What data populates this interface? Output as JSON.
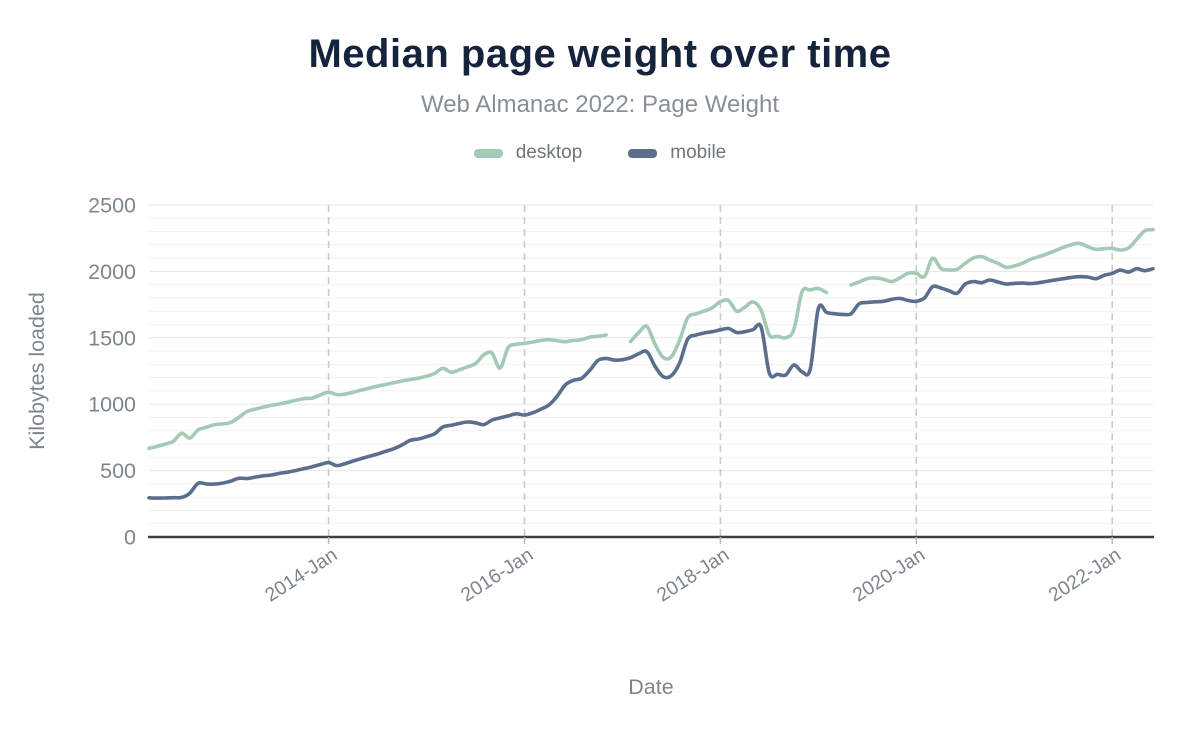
{
  "chart_data": {
    "type": "line",
    "title": "Median page weight over time",
    "subtitle": "Web Almanac 2022: Page Weight",
    "xlabel": "Date",
    "ylabel": "Kilobytes loaded",
    "unit": "KB",
    "ylim": [
      0,
      2500
    ],
    "y_major_ticks": [
      0,
      500,
      1000,
      1500,
      2000,
      2500
    ],
    "y_minor_step": 100,
    "grid": {
      "horizontal": "minor every 100, major every 500",
      "vertical": "dashed at x ticks"
    },
    "legend_position": "top",
    "x_ticks": [
      {
        "label": "2014-Jan",
        "month": "2014-01"
      },
      {
        "label": "2016-Jan",
        "month": "2016-01"
      },
      {
        "label": "2018-Jan",
        "month": "2018-01"
      },
      {
        "label": "2020-Jan",
        "month": "2020-01"
      },
      {
        "label": "2022-Jan",
        "month": "2022-01"
      }
    ],
    "x": [
      "2012-03",
      "2012-04",
      "2012-05",
      "2012-06",
      "2012-07",
      "2012-08",
      "2012-09",
      "2012-10",
      "2012-11",
      "2012-12",
      "2013-01",
      "2013-02",
      "2013-03",
      "2013-04",
      "2013-05",
      "2013-06",
      "2013-07",
      "2013-08",
      "2013-09",
      "2013-10",
      "2013-11",
      "2013-12",
      "2014-01",
      "2014-02",
      "2014-03",
      "2014-04",
      "2014-05",
      "2014-06",
      "2014-07",
      "2014-08",
      "2014-09",
      "2014-10",
      "2014-11",
      "2014-12",
      "2015-01",
      "2015-02",
      "2015-03",
      "2015-04",
      "2015-05",
      "2015-06",
      "2015-07",
      "2015-08",
      "2015-09",
      "2015-10",
      "2015-11",
      "2015-12",
      "2016-01",
      "2016-02",
      "2016-03",
      "2016-04",
      "2016-05",
      "2016-06",
      "2016-07",
      "2016-08",
      "2016-09",
      "2016-10",
      "2016-11",
      "2016-12",
      "2017-01",
      "2017-02",
      "2017-03",
      "2017-04",
      "2017-05",
      "2017-06",
      "2017-07",
      "2017-08",
      "2017-09",
      "2017-10",
      "2017-11",
      "2017-12",
      "2018-01",
      "2018-02",
      "2018-03",
      "2018-04",
      "2018-05",
      "2018-06",
      "2018-07",
      "2018-08",
      "2018-09",
      "2018-10",
      "2018-11",
      "2018-12",
      "2019-01",
      "2019-02",
      "2019-03",
      "2019-04",
      "2019-05",
      "2019-06",
      "2019-07",
      "2019-08",
      "2019-09",
      "2019-10",
      "2019-11",
      "2019-12",
      "2020-01",
      "2020-02",
      "2020-03",
      "2020-04",
      "2020-05",
      "2020-06",
      "2020-07",
      "2020-08",
      "2020-09",
      "2020-10",
      "2020-11",
      "2020-12",
      "2021-01",
      "2021-02",
      "2021-03",
      "2021-04",
      "2021-05",
      "2021-06",
      "2021-07",
      "2021-08",
      "2021-09",
      "2021-10",
      "2021-11",
      "2021-12",
      "2022-01",
      "2022-02",
      "2022-03",
      "2022-04",
      "2022-05",
      "2022-06"
    ],
    "series": [
      {
        "name": "desktop",
        "color": "#a4c9b4",
        "values": [
          668,
          682,
          700,
          722,
          781,
          745,
          806,
          826,
          845,
          852,
          862,
          900,
          945,
          962,
          978,
          992,
          1002,
          1016,
          1030,
          1042,
          1046,
          1070,
          1090,
          1072,
          1076,
          1090,
          1106,
          1121,
          1136,
          1148,
          1161,
          1175,
          1186,
          1196,
          1211,
          1232,
          1270,
          1241,
          1258,
          1281,
          1306,
          1371,
          1386,
          1272,
          1426,
          1450,
          1458,
          1468,
          1480,
          1486,
          1478,
          1471,
          1480,
          1486,
          1505,
          1512,
          1521,
          null,
          null,
          1472,
          1540,
          1585,
          1450,
          1352,
          1357,
          1481,
          1651,
          1680,
          1701,
          1726,
          1772,
          1780,
          1700,
          1731,
          1770,
          1706,
          1521,
          1511,
          1501,
          1561,
          1846,
          1861,
          1871,
          1841,
          null,
          null,
          1898,
          1921,
          1946,
          1951,
          1941,
          1923,
          1951,
          1986,
          1985,
          1961,
          2099,
          2023,
          2011,
          2016,
          2061,
          2101,
          2111,
          2086,
          2061,
          2031,
          2041,
          2061,
          2091,
          2111,
          2131,
          2156,
          2181,
          2201,
          2211,
          2186,
          2166,
          2171,
          2174,
          2161,
          2176,
          2241,
          2306,
          2315
        ]
      },
      {
        "name": "mobile",
        "color": "#5b6e8e",
        "values": [
          295,
          293,
          294,
          296,
          298,
          330,
          404,
          400,
          398,
          406,
          420,
          442,
          440,
          450,
          461,
          467,
          480,
          488,
          501,
          515,
          529,
          546,
          560,
          538,
          552,
          572,
          590,
          608,
          625,
          645,
          665,
          693,
          728,
          738,
          755,
          778,
          828,
          841,
          855,
          866,
          860,
          846,
          880,
          897,
          912,
          928,
          918,
          935,
          962,
          995,
          1060,
          1145,
          1180,
          1195,
          1255,
          1330,
          1345,
          1332,
          1335,
          1350,
          1380,
          1395,
          1285,
          1207,
          1215,
          1310,
          1490,
          1520,
          1536,
          1546,
          1560,
          1570,
          1540,
          1546,
          1561,
          1580,
          1233,
          1225,
          1220,
          1295,
          1245,
          1262,
          1720,
          1691,
          1681,
          1676,
          1681,
          1756,
          1766,
          1771,
          1775,
          1790,
          1797,
          1781,
          1775,
          1800,
          1885,
          1875,
          1855,
          1835,
          1905,
          1923,
          1915,
          1935,
          1920,
          1905,
          1910,
          1912,
          1908,
          1915,
          1925,
          1935,
          1945,
          1955,
          1960,
          1958,
          1945,
          1970,
          1985,
          2010,
          1995,
          2020,
          2005,
          2020
        ]
      }
    ]
  },
  "colors": {
    "title": "#15233c",
    "subtitle": "#878f99",
    "axis_label": "#7d858e",
    "axis_line": "#3c4043",
    "grid_minor": "#f0f1f2",
    "grid_major": "#e4e6e8",
    "grid_vertical_dashed": "#c8cbce"
  }
}
